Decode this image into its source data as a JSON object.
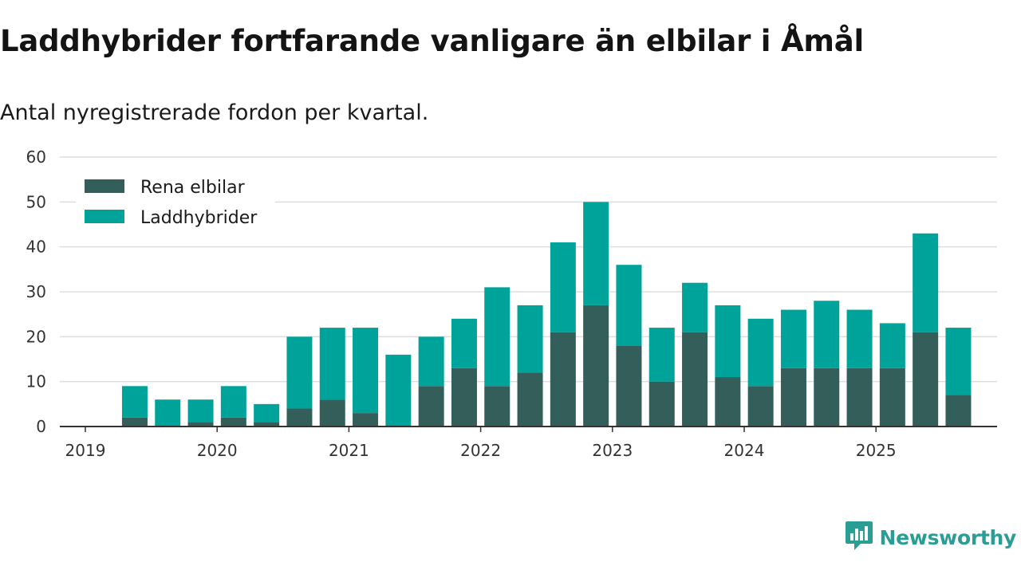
{
  "title": "Laddhybrider fortfarande vanligare än elbilar i Åmål",
  "subtitle": "Antal nyregistrerade fordon per kvartal.",
  "brand": {
    "name": "Newsworthy",
    "icon": "newsworthy-logo-icon",
    "color": "#2a9d95"
  },
  "chart_data": {
    "type": "bar",
    "stacked": true,
    "ylim": [
      0,
      60
    ],
    "yticks": [
      0,
      10,
      20,
      30,
      40,
      50,
      60
    ],
    "year_ticks": [
      "2019",
      "2020",
      "2021",
      "2022",
      "2023",
      "2024",
      "2025"
    ],
    "first_year": 2019,
    "categories": [
      "2019 Q2",
      "2019 Q3",
      "2019 Q4",
      "2020 Q1",
      "2020 Q2",
      "2020 Q3",
      "2020 Q4",
      "2021 Q1",
      "2021 Q2",
      "2021 Q3",
      "2021 Q4",
      "2022 Q1",
      "2022 Q2",
      "2022 Q3",
      "2022 Q4",
      "2023 Q1",
      "2023 Q2",
      "2023 Q3",
      "2023 Q4",
      "2024 Q1",
      "2024 Q2",
      "2024 Q3",
      "2024 Q4",
      "2025 Q1",
      "2025 Q2",
      "2025 Q3"
    ],
    "series": [
      {
        "name": "Rena elbilar",
        "color": "#335e5a",
        "values": [
          2,
          0,
          1,
          2,
          1,
          4,
          6,
          3,
          0,
          9,
          13,
          9,
          12,
          21,
          27,
          18,
          10,
          21,
          11,
          9,
          13,
          13,
          13,
          13,
          21,
          7
        ]
      },
      {
        "name": "Laddhybrider",
        "color": "#00a39a",
        "values": [
          7,
          6,
          5,
          7,
          4,
          16,
          16,
          19,
          16,
          11,
          11,
          22,
          15,
          20,
          23,
          18,
          12,
          11,
          16,
          15,
          13,
          15,
          13,
          10,
          22,
          15
        ]
      }
    ],
    "legend_position": "top-left",
    "grid": true
  }
}
